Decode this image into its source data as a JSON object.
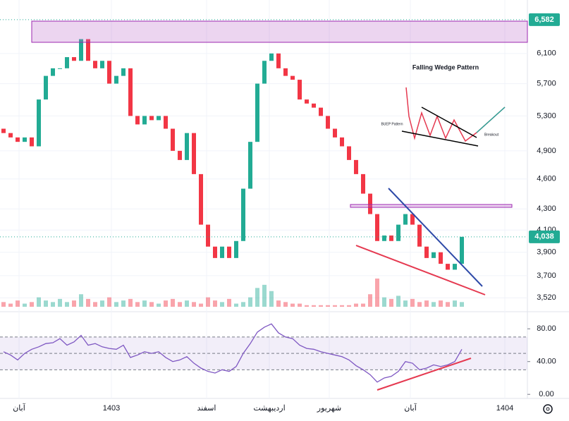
{
  "chart_data": {
    "type": "candlestick",
    "open": [
      5150,
      5100,
      5050,
      5000,
      5050,
      4950,
      5500,
      5800,
      5900,
      5900,
      6050,
      6000,
      6300,
      6000,
      5900,
      6000,
      5700,
      5800,
      5900,
      5300,
      5200,
      5300,
      5250,
      5300,
      5150,
      4900,
      4800,
      5100,
      4650,
      4150,
      3950,
      3850,
      3950,
      3850,
      4000,
      4500,
      5000,
      5700,
      6000,
      6100,
      5900,
      5800,
      5750,
      5500,
      5450,
      5400,
      5300,
      5150,
      5050,
      4950,
      4800,
      4650,
      4450,
      4250,
      4000,
      4050,
      4000,
      4150,
      4250,
      4150,
      3950,
      3850,
      3900,
      3800,
      3750,
      3800
    ],
    "close": [
      5100,
      5050,
      5000,
      5050,
      4950,
      5500,
      5800,
      5900,
      5900,
      6050,
      6000,
      6300,
      6000,
      5900,
      6000,
      5700,
      5800,
      5900,
      5300,
      5200,
      5300,
      5250,
      5300,
      5150,
      4900,
      4800,
      5100,
      4650,
      4150,
      3950,
      3850,
      3950,
      3850,
      4000,
      4500,
      5000,
      5700,
      6000,
      6100,
      5900,
      5800,
      5750,
      5500,
      5450,
      5400,
      5300,
      5150,
      5050,
      4950,
      4800,
      4650,
      4450,
      4250,
      4000,
      4050,
      4000,
      4150,
      4250,
      4150,
      3950,
      3850,
      3900,
      3800,
      3750,
      3800,
      4038
    ],
    "volume": [
      3,
      2,
      4,
      2,
      3,
      6,
      4,
      3,
      5,
      3,
      4,
      8,
      5,
      3,
      4,
      6,
      3,
      4,
      5,
      3,
      4,
      3,
      2,
      4,
      5,
      3,
      4,
      3,
      2,
      6,
      4,
      3,
      5,
      2,
      3,
      6,
      12,
      14,
      10,
      4,
      3,
      2,
      2,
      1,
      1,
      1,
      1,
      1,
      1,
      1,
      2,
      2,
      8,
      18,
      6,
      5,
      7,
      4,
      5,
      3,
      4,
      3,
      4,
      3,
      4,
      3
    ],
    "up_color": "#22ab94",
    "down_color": "#f23645",
    "log_scale": true,
    "ylim": [
      3450,
      6880
    ],
    "yticks": [
      {
        "value": 3520,
        "label": "3,520"
      },
      {
        "value": 3700,
        "label": "3,700"
      },
      {
        "value": 3900,
        "label": "3,900"
      },
      {
        "value": 4100,
        "label": "4,100"
      },
      {
        "value": 4300,
        "label": "4,300"
      },
      {
        "value": 4600,
        "label": "4,600"
      },
      {
        "value": 4900,
        "label": "4,900"
      },
      {
        "value": 5300,
        "label": "5,300"
      },
      {
        "value": 5700,
        "label": "5,700"
      },
      {
        "value": 6100,
        "label": "6,100"
      }
    ],
    "price_labels": [
      {
        "value": 6582,
        "label": "6,582"
      },
      {
        "value": 4038,
        "label": "4,038"
      }
    ],
    "xlim": [
      0,
      74.5
    ],
    "xticks": [
      {
        "value": 2.7,
        "label": "آبان"
      },
      {
        "value": 15.8,
        "label": "1403"
      },
      {
        "value": 29.3,
        "label": "اسفند"
      },
      {
        "value": 38.2,
        "label": "اردیبهشت"
      },
      {
        "value": 46.7,
        "label": "شهریور"
      },
      {
        "value": 58.2,
        "label": "آبان"
      },
      {
        "value": 71.6,
        "label": "1404"
      }
    ],
    "rsi": {
      "values": [
        52,
        48,
        42,
        50,
        55,
        58,
        62,
        63,
        68,
        60,
        64,
        72,
        60,
        62,
        58,
        56,
        55,
        60,
        45,
        48,
        52,
        50,
        52,
        45,
        40,
        42,
        46,
        38,
        32,
        28,
        26,
        30,
        28,
        34,
        50,
        62,
        76,
        82,
        86,
        75,
        70,
        68,
        60,
        56,
        55,
        52,
        50,
        48,
        46,
        42,
        35,
        30,
        24,
        15,
        20,
        22,
        28,
        40,
        38,
        30,
        32,
        36,
        34,
        36,
        40,
        55
      ],
      "color": "#7e57c2",
      "ylim": [
        -5,
        94
      ],
      "levels": [
        30,
        50,
        70
      ],
      "yticks": [
        {
          "value": 0,
          "label": "0.00"
        },
        {
          "value": 40,
          "label": "40.00"
        },
        {
          "value": 80,
          "label": "80.00"
        }
      ]
    },
    "inset": {
      "title": "Falling Wedge Pattern",
      "left_label": "BUEP Pattern",
      "right_label": "Breakout"
    }
  }
}
